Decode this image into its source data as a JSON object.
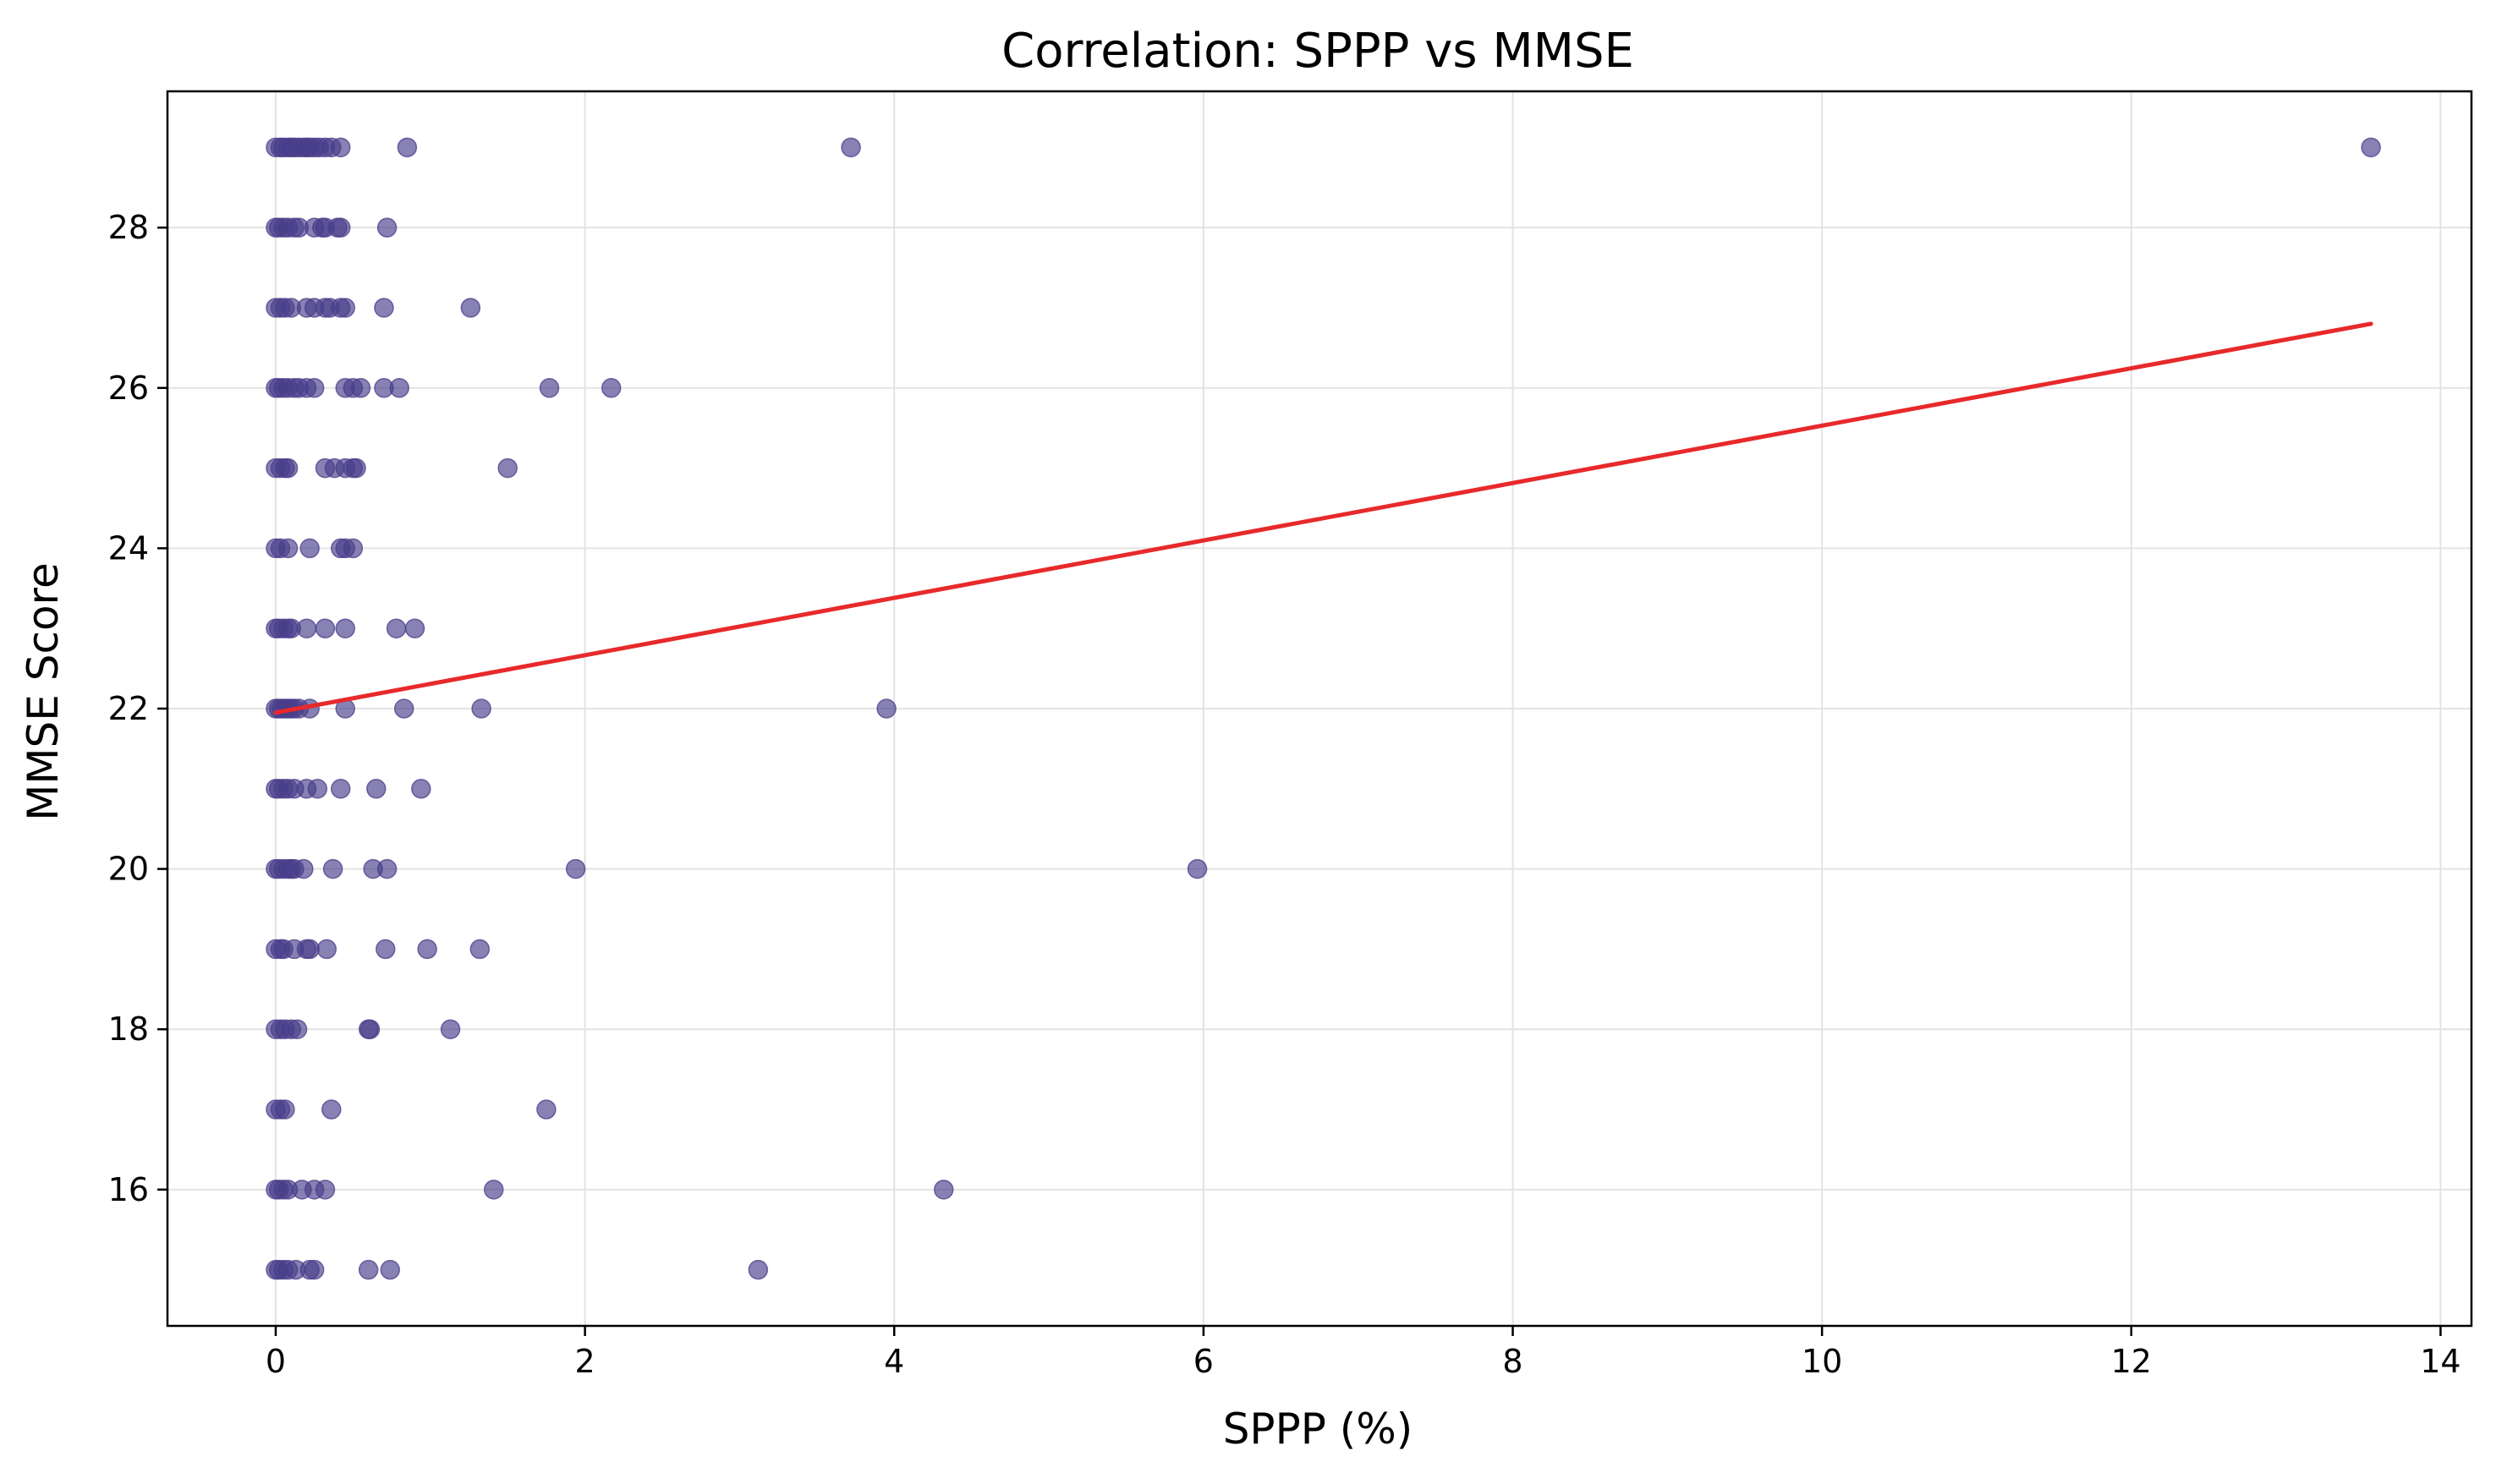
{
  "chart_data": {
    "type": "scatter",
    "title": "Correlation: SPPP vs MMSE",
    "xlabel": "SPPP (%)",
    "ylabel": "MMSE Score",
    "xlim": [
      -0.7,
      14.2
    ],
    "ylim": [
      14.3,
      29.7
    ],
    "xticks": [
      0,
      2,
      4,
      6,
      8,
      10,
      12,
      14
    ],
    "yticks": [
      16,
      18,
      20,
      22,
      24,
      26,
      28
    ],
    "grid": true,
    "colors": {
      "points": "#483d8b",
      "trend": "#e8292b",
      "grid": "#e3e3e3",
      "axes": "#000000"
    },
    "series": [
      {
        "marker": "circle",
        "points": [
          [
            0,
            29
          ],
          [
            0.03,
            29
          ],
          [
            0.05,
            29
          ],
          [
            0.08,
            29
          ],
          [
            0.1,
            29
          ],
          [
            0.12,
            29
          ],
          [
            0.15,
            29
          ],
          [
            0.18,
            29
          ],
          [
            0.2,
            29
          ],
          [
            0.22,
            29
          ],
          [
            0.25,
            29
          ],
          [
            0.28,
            29
          ],
          [
            0.32,
            29
          ],
          [
            0.36,
            29
          ],
          [
            0.42,
            29
          ],
          [
            0.85,
            29
          ],
          [
            3.72,
            29
          ],
          [
            13.55,
            29
          ],
          [
            0,
            28
          ],
          [
            0.02,
            28
          ],
          [
            0.05,
            28
          ],
          [
            0.08,
            28
          ],
          [
            0.12,
            28
          ],
          [
            0.15,
            28
          ],
          [
            0.25,
            28
          ],
          [
            0.3,
            28
          ],
          [
            0.32,
            28
          ],
          [
            0.4,
            28
          ],
          [
            0.42,
            28
          ],
          [
            0.72,
            28
          ],
          [
            0,
            27
          ],
          [
            0.03,
            27
          ],
          [
            0.06,
            27
          ],
          [
            0.1,
            27
          ],
          [
            0.2,
            27
          ],
          [
            0.25,
            27
          ],
          [
            0.32,
            27
          ],
          [
            0.35,
            27
          ],
          [
            0.42,
            27
          ],
          [
            0.45,
            27
          ],
          [
            0.7,
            27
          ],
          [
            1.26,
            27
          ],
          [
            0,
            26
          ],
          [
            0.02,
            26
          ],
          [
            0.05,
            26
          ],
          [
            0.08,
            26
          ],
          [
            0.12,
            26
          ],
          [
            0.15,
            26
          ],
          [
            0.2,
            26
          ],
          [
            0.25,
            26
          ],
          [
            0.45,
            26
          ],
          [
            0.5,
            26
          ],
          [
            0.55,
            26
          ],
          [
            0.7,
            26
          ],
          [
            0.8,
            26
          ],
          [
            1.77,
            26
          ],
          [
            2.17,
            26
          ],
          [
            0,
            25
          ],
          [
            0.03,
            25
          ],
          [
            0.06,
            25
          ],
          [
            0.08,
            25
          ],
          [
            0.32,
            25
          ],
          [
            0.38,
            25
          ],
          [
            0.45,
            25
          ],
          [
            0.5,
            25
          ],
          [
            0.52,
            25
          ],
          [
            1.5,
            25
          ],
          [
            0,
            24
          ],
          [
            0.03,
            24
          ],
          [
            0.08,
            24
          ],
          [
            0.22,
            24
          ],
          [
            0.42,
            24
          ],
          [
            0.45,
            24
          ],
          [
            0.5,
            24
          ],
          [
            0,
            23
          ],
          [
            0.02,
            23
          ],
          [
            0.05,
            23
          ],
          [
            0.08,
            23
          ],
          [
            0.1,
            23
          ],
          [
            0.2,
            23
          ],
          [
            0.32,
            23
          ],
          [
            0.45,
            23
          ],
          [
            0.78,
            23
          ],
          [
            0.9,
            23
          ],
          [
            0,
            22
          ],
          [
            0.02,
            22
          ],
          [
            0.04,
            22
          ],
          [
            0.06,
            22
          ],
          [
            0.08,
            22
          ],
          [
            0.1,
            22
          ],
          [
            0.12,
            22
          ],
          [
            0.15,
            22
          ],
          [
            0.22,
            22
          ],
          [
            0.45,
            22
          ],
          [
            0.83,
            22
          ],
          [
            1.33,
            22
          ],
          [
            3.95,
            22
          ],
          [
            0,
            21
          ],
          [
            0.02,
            21
          ],
          [
            0.05,
            21
          ],
          [
            0.08,
            21
          ],
          [
            0.12,
            21
          ],
          [
            0.2,
            21
          ],
          [
            0.27,
            21
          ],
          [
            0.42,
            21
          ],
          [
            0.65,
            21
          ],
          [
            0.94,
            21
          ],
          [
            0,
            20
          ],
          [
            0.02,
            20
          ],
          [
            0.05,
            20
          ],
          [
            0.08,
            20
          ],
          [
            0.1,
            20
          ],
          [
            0.12,
            20
          ],
          [
            0.18,
            20
          ],
          [
            0.37,
            20
          ],
          [
            0.63,
            20
          ],
          [
            0.72,
            20
          ],
          [
            1.94,
            20
          ],
          [
            5.96,
            20
          ],
          [
            0,
            19
          ],
          [
            0.03,
            19
          ],
          [
            0.05,
            19
          ],
          [
            0.12,
            19
          ],
          [
            0.2,
            19
          ],
          [
            0.22,
            19
          ],
          [
            0.33,
            19
          ],
          [
            0.71,
            19
          ],
          [
            0.98,
            19
          ],
          [
            1.32,
            19
          ],
          [
            0,
            18
          ],
          [
            0.03,
            18
          ],
          [
            0.06,
            18
          ],
          [
            0.1,
            18
          ],
          [
            0.14,
            18
          ],
          [
            0.6,
            18
          ],
          [
            0.61,
            18
          ],
          [
            1.13,
            18
          ],
          [
            0,
            17
          ],
          [
            0.03,
            17
          ],
          [
            0.06,
            17
          ],
          [
            0.36,
            17
          ],
          [
            1.75,
            17
          ],
          [
            0,
            16
          ],
          [
            0.02,
            16
          ],
          [
            0.05,
            16
          ],
          [
            0.08,
            16
          ],
          [
            0.17,
            16
          ],
          [
            0.25,
            16
          ],
          [
            0.32,
            16
          ],
          [
            1.41,
            16
          ],
          [
            4.32,
            16
          ],
          [
            0,
            15
          ],
          [
            0.02,
            15
          ],
          [
            0.05,
            15
          ],
          [
            0.08,
            15
          ],
          [
            0.13,
            15
          ],
          [
            0.22,
            15
          ],
          [
            0.25,
            15
          ],
          [
            0.6,
            15
          ],
          [
            0.74,
            15
          ],
          [
            3.12,
            15
          ]
        ]
      }
    ],
    "trendline": {
      "x": [
        0,
        13.55
      ],
      "y": [
        21.95,
        26.8
      ]
    }
  }
}
